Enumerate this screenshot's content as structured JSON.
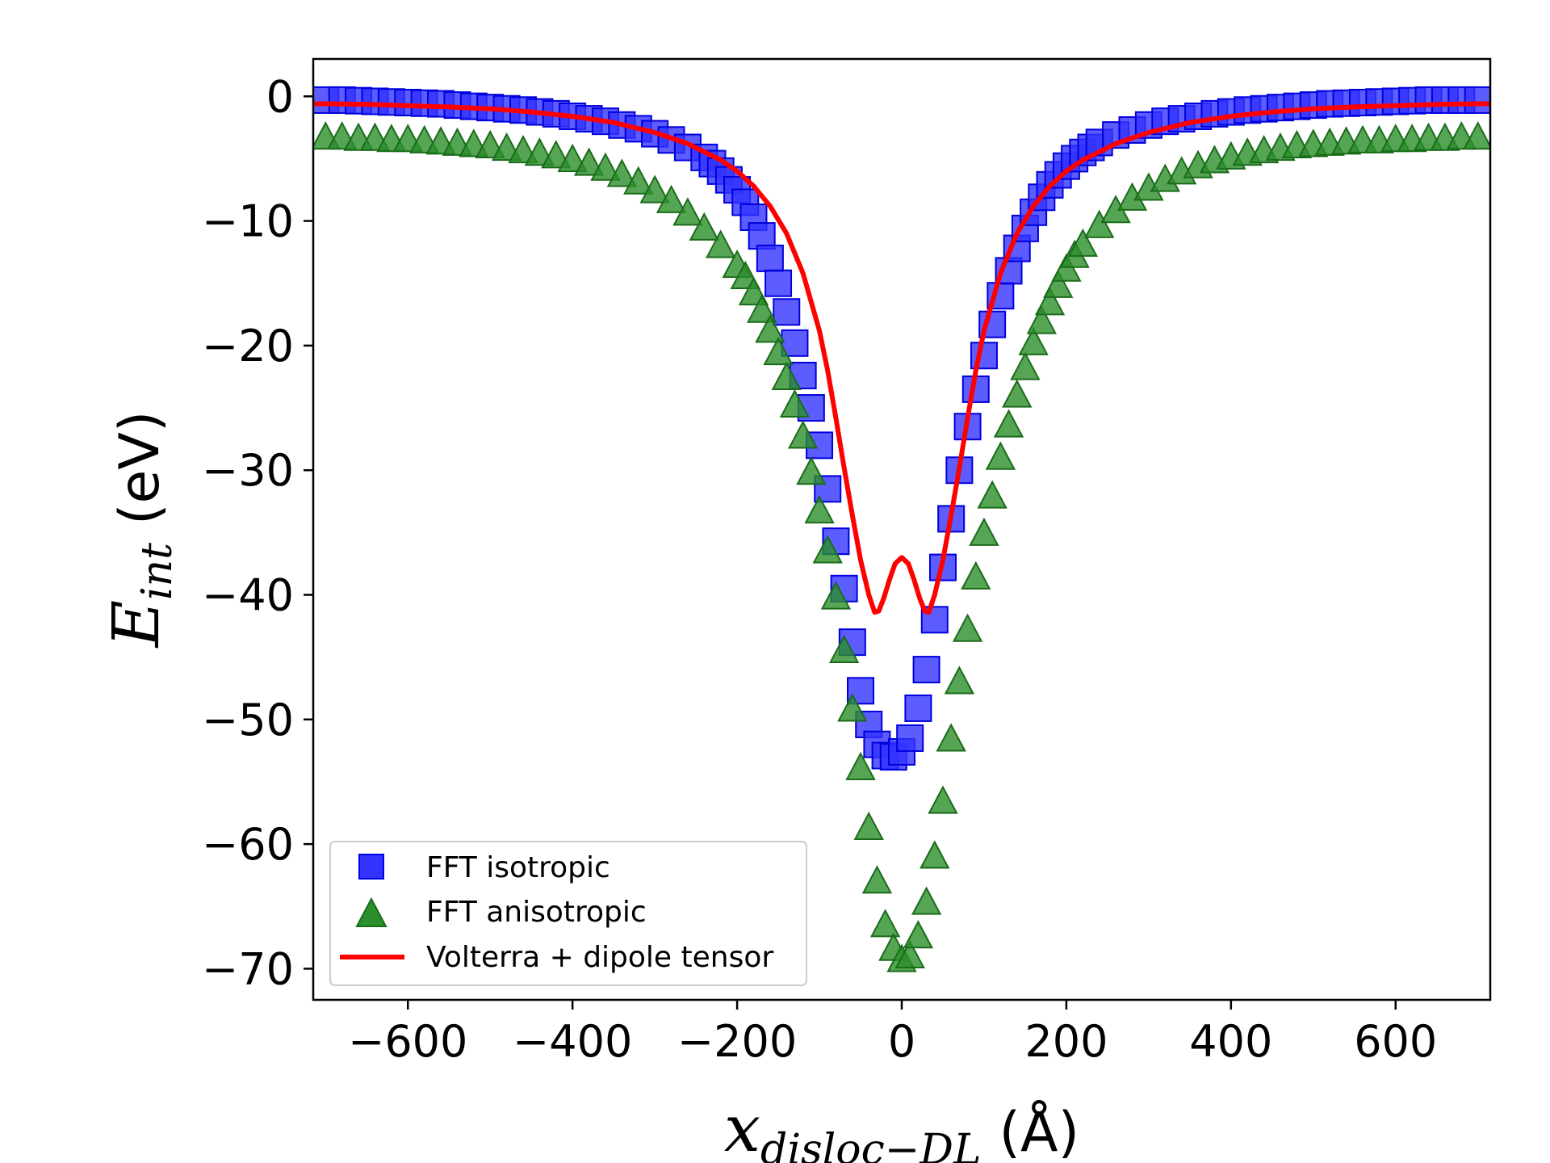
{
  "chart_data": {
    "type": "scatter",
    "title": "",
    "xlabel": {
      "var": "x",
      "sub": "disloc−DL",
      "unit": "(Å)"
    },
    "ylabel": {
      "var": "E",
      "sub": "int",
      "unit": "(eV)"
    },
    "xlim": [
      -715,
      715
    ],
    "ylim": [
      -72.5,
      3
    ],
    "xticks": [
      -600,
      -400,
      -200,
      0,
      200,
      400,
      600
    ],
    "xtick_labels": [
      "−600",
      "−400",
      "−200",
      "0",
      "200",
      "400",
      "600"
    ],
    "yticks": [
      0,
      -10,
      -20,
      -30,
      -40,
      -50,
      -60,
      -70
    ],
    "ytick_labels": [
      "0",
      "−10",
      "−20",
      "−30",
      "−40",
      "−50",
      "−60",
      "−70"
    ],
    "grid": false,
    "legend_position": "lower-left",
    "series": [
      {
        "name": "FFT isotropic",
        "marker": "square",
        "color": "#0000ff",
        "x": [
          -700,
          -680,
          -660,
          -640,
          -620,
          -600,
          -580,
          -560,
          -540,
          -520,
          -500,
          -480,
          -460,
          -440,
          -420,
          -400,
          -380,
          -360,
          -340,
          -320,
          -300,
          -280,
          -260,
          -240,
          -230,
          -220,
          -210,
          -200,
          -190,
          -180,
          -170,
          -160,
          -150,
          -140,
          -130,
          -120,
          -110,
          -100,
          -90,
          -80,
          -70,
          -60,
          -50,
          -40,
          -30,
          -20,
          -10,
          0,
          10,
          20,
          30,
          40,
          50,
          60,
          70,
          80,
          90,
          100,
          110,
          120,
          130,
          140,
          150,
          160,
          170,
          180,
          190,
          200,
          210,
          220,
          230,
          240,
          260,
          280,
          300,
          320,
          340,
          360,
          380,
          400,
          420,
          440,
          460,
          480,
          500,
          520,
          540,
          560,
          580,
          600,
          620,
          640,
          660,
          680,
          700
        ],
        "values": [
          -0.3,
          -0.3,
          -0.35,
          -0.4,
          -0.45,
          -0.5,
          -0.55,
          -0.6,
          -0.7,
          -0.8,
          -0.9,
          -1.0,
          -1.1,
          -1.25,
          -1.4,
          -1.6,
          -1.8,
          -2.0,
          -2.3,
          -2.6,
          -3.0,
          -3.5,
          -4.1,
          -4.9,
          -5.4,
          -6.0,
          -6.7,
          -7.5,
          -8.5,
          -9.7,
          -11.2,
          -13.0,
          -15.0,
          -17.3,
          -19.8,
          -22.4,
          -25.0,
          -28.0,
          -31.5,
          -35.7,
          -39.5,
          -43.8,
          -47.7,
          -50.4,
          -52.0,
          -52.9,
          -53.0,
          -52.6,
          -51.5,
          -49.1,
          -46.0,
          -42.0,
          -37.8,
          -33.9,
          -30.0,
          -26.5,
          -23.5,
          -20.8,
          -18.3,
          -16.0,
          -14.0,
          -12.2,
          -10.6,
          -9.3,
          -8.1,
          -7.1,
          -6.3,
          -5.6,
          -5.0,
          -4.5,
          -4.1,
          -3.7,
          -3.1,
          -2.7,
          -2.3,
          -2.0,
          -1.8,
          -1.6,
          -1.4,
          -1.25,
          -1.1,
          -1.0,
          -0.9,
          -0.8,
          -0.7,
          -0.6,
          -0.55,
          -0.5,
          -0.45,
          -0.4,
          -0.35,
          -0.3,
          -0.3,
          -0.3,
          -0.3
        ]
      },
      {
        "name": "FFT anisotropic",
        "marker": "triangle",
        "color": "#008000",
        "x": [
          -700,
          -680,
          -660,
          -640,
          -620,
          -600,
          -580,
          -560,
          -540,
          -520,
          -500,
          -480,
          -460,
          -440,
          -420,
          -400,
          -380,
          -360,
          -340,
          -320,
          -300,
          -280,
          -260,
          -240,
          -220,
          -200,
          -190,
          -180,
          -170,
          -160,
          -150,
          -140,
          -130,
          -120,
          -110,
          -100,
          -90,
          -80,
          -70,
          -60,
          -50,
          -40,
          -30,
          -20,
          -10,
          0,
          10,
          20,
          30,
          40,
          50,
          60,
          70,
          80,
          90,
          100,
          110,
          120,
          130,
          140,
          150,
          160,
          170,
          180,
          190,
          200,
          210,
          220,
          240,
          260,
          280,
          300,
          320,
          340,
          360,
          380,
          400,
          420,
          440,
          460,
          480,
          500,
          520,
          540,
          560,
          580,
          600,
          620,
          640,
          660,
          680,
          700
        ],
        "values": [
          -3.3,
          -3.3,
          -3.4,
          -3.4,
          -3.5,
          -3.5,
          -3.6,
          -3.7,
          -3.8,
          -3.9,
          -4.0,
          -4.2,
          -4.4,
          -4.6,
          -4.8,
          -5.1,
          -5.4,
          -5.8,
          -6.3,
          -6.9,
          -7.6,
          -8.4,
          -9.4,
          -10.6,
          -12.0,
          -13.6,
          -14.5,
          -15.8,
          -17.2,
          -18.8,
          -20.6,
          -22.6,
          -24.8,
          -27.3,
          -30.2,
          -33.3,
          -36.5,
          -40.2,
          -44.5,
          -49.2,
          -53.9,
          -58.7,
          -63.0,
          -66.5,
          -68.4,
          -69.3,
          -69.0,
          -67.4,
          -64.7,
          -61.0,
          -56.6,
          -51.6,
          -47.0,
          -42.8,
          -38.6,
          -35.1,
          -32.1,
          -29.0,
          -26.4,
          -24.0,
          -21.8,
          -19.8,
          -18.1,
          -16.6,
          -15.2,
          -13.9,
          -12.8,
          -11.9,
          -10.4,
          -9.2,
          -8.2,
          -7.4,
          -6.7,
          -6.1,
          -5.6,
          -5.2,
          -4.9,
          -4.6,
          -4.4,
          -4.2,
          -4.0,
          -3.9,
          -3.8,
          -3.7,
          -3.6,
          -3.6,
          -3.5,
          -3.5,
          -3.4,
          -3.4,
          -3.3,
          -3.3
        ]
      },
      {
        "name": "Volterra + dipole tensor",
        "marker": "line",
        "color": "#ff0000",
        "x": [
          -715,
          -700,
          -650,
          -600,
          -550,
          -500,
          -450,
          -400,
          -350,
          -300,
          -260,
          -220,
          -200,
          -180,
          -160,
          -140,
          -120,
          -100,
          -90,
          -80,
          -70,
          -60,
          -50,
          -40,
          -33,
          -28,
          -22,
          -15,
          -8,
          0,
          8,
          15,
          22,
          28,
          33,
          40,
          50,
          60,
          70,
          80,
          90,
          100,
          120,
          140,
          160,
          180,
          200,
          220,
          260,
          300,
          350,
          400,
          450,
          500,
          550,
          600,
          650,
          700,
          715
        ],
        "values": [
          -0.6,
          -0.6,
          -0.65,
          -0.75,
          -0.85,
          -1.0,
          -1.25,
          -1.6,
          -2.1,
          -2.9,
          -3.8,
          -5.1,
          -6.0,
          -7.2,
          -8.8,
          -11.0,
          -14.2,
          -18.8,
          -22.0,
          -25.8,
          -29.8,
          -33.6,
          -37.2,
          -40.0,
          -41.4,
          -41.3,
          -40.3,
          -38.8,
          -37.5,
          -37.0,
          -37.5,
          -38.8,
          -40.3,
          -41.3,
          -41.4,
          -40.0,
          -37.2,
          -33.6,
          -29.8,
          -25.8,
          -22.0,
          -18.8,
          -14.2,
          -11.0,
          -8.8,
          -7.2,
          -6.0,
          -5.1,
          -3.8,
          -2.9,
          -2.1,
          -1.6,
          -1.25,
          -1.0,
          -0.85,
          -0.75,
          -0.65,
          -0.6,
          -0.6
        ]
      }
    ]
  }
}
